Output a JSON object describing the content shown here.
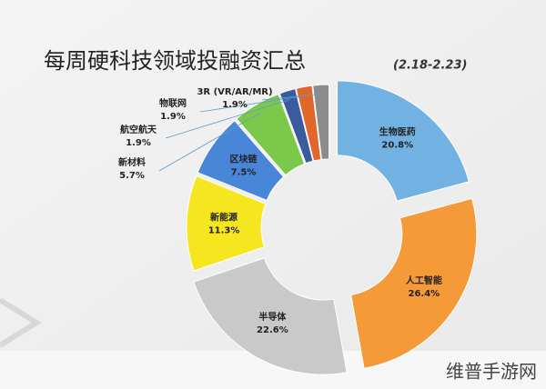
{
  "chart_data": {
    "type": "donut",
    "title": "每周硬科技领域投融资汇总",
    "subtitle": "(2.18-2.23)",
    "categories": [
      "生物医药",
      "人工智能",
      "半导体",
      "新能源",
      "区块链",
      "新材料",
      "航空航天",
      "物联网",
      "3R (VR/AR/MR)"
    ],
    "values": [
      20.8,
      26.4,
      22.6,
      11.3,
      7.5,
      5.7,
      1.9,
      1.9,
      1.9
    ],
    "value_labels": [
      "20.8%",
      "26.4%",
      "22.6%",
      "11.3%",
      "7.5%",
      "5.7%",
      "1.9%",
      "1.9%",
      "1.9%"
    ],
    "colors": [
      "#72b2e2",
      "#f59a38",
      "#c9c9c9",
      "#f6e620",
      "#4a86d8",
      "#7cc84a",
      "#3b5c9c",
      "#e0662c",
      "#8c8c8c"
    ]
  },
  "watermark": "维普手游网"
}
